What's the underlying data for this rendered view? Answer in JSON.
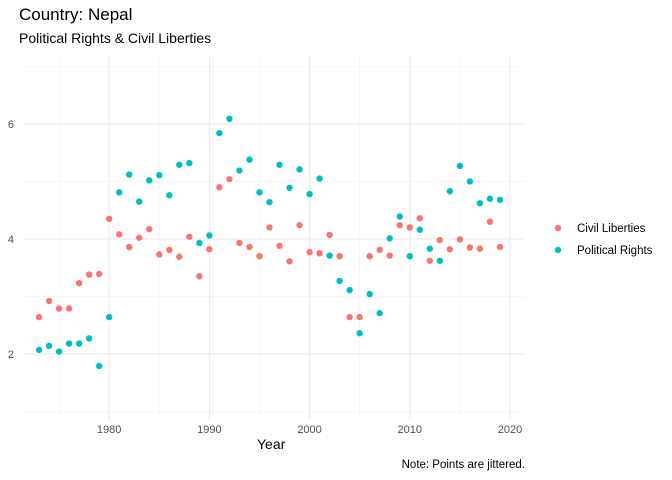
{
  "chart_data": {
    "type": "scatter",
    "title": "Country: Nepal",
    "subtitle": "Political Rights & Civil Liberties",
    "xlabel": "Year",
    "ylabel": "",
    "caption": "Note: Points are jittered.",
    "xlim": [
      1971.5,
      2021.5
    ],
    "ylim": [
      0.85,
      7.2
    ],
    "xticks": [
      1980,
      1990,
      2000,
      2010,
      2020
    ],
    "yticks": [
      2,
      4,
      6
    ],
    "grid": true,
    "legend_position": "right",
    "series": [
      {
        "name": "Civil Liberties",
        "color": "#F8766D",
        "points": [
          [
            1973,
            2.64
          ],
          [
            1974,
            2.92
          ],
          [
            1975,
            2.79
          ],
          [
            1976,
            2.79
          ],
          [
            1977,
            3.23
          ],
          [
            1978,
            3.38
          ],
          [
            1979,
            3.39
          ],
          [
            1980,
            4.35
          ],
          [
            1981,
            4.08
          ],
          [
            1982,
            3.86
          ],
          [
            1983,
            4.02
          ],
          [
            1984,
            4.17
          ],
          [
            1985,
            3.73
          ],
          [
            1986,
            3.81
          ],
          [
            1987,
            3.69
          ],
          [
            1988,
            4.04
          ],
          [
            1989,
            3.35
          ],
          [
            1990,
            3.82
          ],
          [
            1991,
            4.9
          ],
          [
            1992,
            5.04
          ],
          [
            1993,
            3.93
          ],
          [
            1994,
            3.86
          ],
          [
            1995,
            3.7
          ],
          [
            1996,
            4.2
          ],
          [
            1997,
            3.88
          ],
          [
            1998,
            3.61
          ],
          [
            1999,
            4.24
          ],
          [
            2000,
            3.77
          ],
          [
            2001,
            3.75
          ],
          [
            2002,
            4.07
          ],
          [
            2003,
            3.7
          ],
          [
            2004,
            2.64
          ],
          [
            2005,
            2.64
          ],
          [
            2006,
            3.7
          ],
          [
            2007,
            3.81
          ],
          [
            2008,
            3.71
          ],
          [
            2009,
            4.24
          ],
          [
            2010,
            4.2
          ],
          [
            2011,
            4.36
          ],
          [
            2012,
            3.62
          ],
          [
            2013,
            3.98
          ],
          [
            2014,
            3.82
          ],
          [
            2015,
            3.99
          ],
          [
            2016,
            3.85
          ],
          [
            2017,
            3.83
          ],
          [
            2018,
            4.3
          ],
          [
            2019,
            3.86
          ]
        ]
      },
      {
        "name": "Political Rights",
        "color": "#00BFC4",
        "points": [
          [
            1973,
            2.07
          ],
          [
            1974,
            2.14
          ],
          [
            1975,
            2.04
          ],
          [
            1976,
            2.18
          ],
          [
            1977,
            2.18
          ],
          [
            1978,
            2.27
          ],
          [
            1979,
            1.79
          ],
          [
            1980,
            2.64
          ],
          [
            1981,
            4.81
          ],
          [
            1982,
            5.12
          ],
          [
            1983,
            4.65
          ],
          [
            1984,
            5.02
          ],
          [
            1985,
            5.11
          ],
          [
            1986,
            4.76
          ],
          [
            1987,
            5.29
          ],
          [
            1988,
            5.32
          ],
          [
            1989,
            3.93
          ],
          [
            1990,
            4.06
          ],
          [
            1991,
            5.84
          ],
          [
            1992,
            6.09
          ],
          [
            1993,
            5.19
          ],
          [
            1994,
            5.38
          ],
          [
            1995,
            4.81
          ],
          [
            1996,
            4.64
          ],
          [
            1997,
            5.29
          ],
          [
            1998,
            4.89
          ],
          [
            1999,
            5.21
          ],
          [
            2000,
            4.78
          ],
          [
            2001,
            5.05
          ],
          [
            2002,
            3.71
          ],
          [
            2003,
            3.27
          ],
          [
            2004,
            3.11
          ],
          [
            2005,
            2.36
          ],
          [
            2006,
            3.04
          ],
          [
            2007,
            2.71
          ],
          [
            2008,
            4.01
          ],
          [
            2009,
            4.39
          ],
          [
            2010,
            3.7
          ],
          [
            2011,
            4.16
          ],
          [
            2012,
            3.83
          ],
          [
            2013,
            3.62
          ],
          [
            2014,
            4.83
          ],
          [
            2015,
            5.27
          ],
          [
            2016,
            5.0
          ],
          [
            2017,
            4.62
          ],
          [
            2018,
            4.7
          ],
          [
            2019,
            4.68
          ]
        ]
      }
    ]
  }
}
